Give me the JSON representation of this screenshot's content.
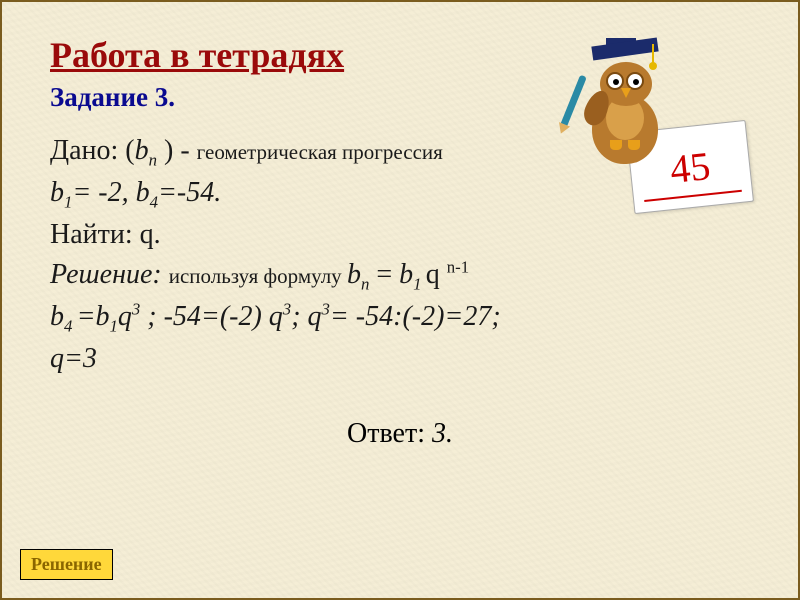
{
  "title": "Работа в тетрадях",
  "subtitle": "Задание 3.",
  "owl_card_grade": "45",
  "lines": {
    "given_prefix": "Дано: (",
    "given_var": "b",
    "given_sub": "n",
    "given_mid": " ) - ",
    "given_desc": "геометрическая прогрессия",
    "values_b1_var": "b",
    "values_b1_sub": "1",
    "values_b1_eq": "= -2,   ",
    "values_b4_var": "b",
    "values_b4_sub": "4",
    "values_b4_eq": "=-54.",
    "find": "Найти: q.",
    "solution_label": "Решение: ",
    "solution_desc": "используя формулу ",
    "formula_bn_var": "b",
    "formula_bn_sub": "n",
    "formula_eq": " = ",
    "formula_b1_var": "b",
    "formula_b1_sub": "1 ",
    "formula_q": "q ",
    "formula_exp": "n-1",
    "line5_b4_var": "b",
    "line5_b4_sub": "4 ",
    "line5_eq1": "=",
    "line5_b1_var": "b",
    "line5_b1_sub": "1",
    "line5_q_var": "q",
    "line5_q_exp": "3",
    "line5_mid1": " ; -54=(-2) q",
    "line5_exp2": "3",
    "line5_mid2": ";    q",
    "line5_exp3": "3",
    "line5_end": "= -54:(-2)=27;",
    "q_result": " q=3"
  },
  "answer_label": "Ответ: ",
  "answer_value": "3.",
  "button": "Решение",
  "colors": {
    "title": "#9a0a0a",
    "subtitle": "#0a0a90",
    "background": "#f5eed6",
    "button_bg": "#ffd83a",
    "button_text": "#8a6600"
  }
}
